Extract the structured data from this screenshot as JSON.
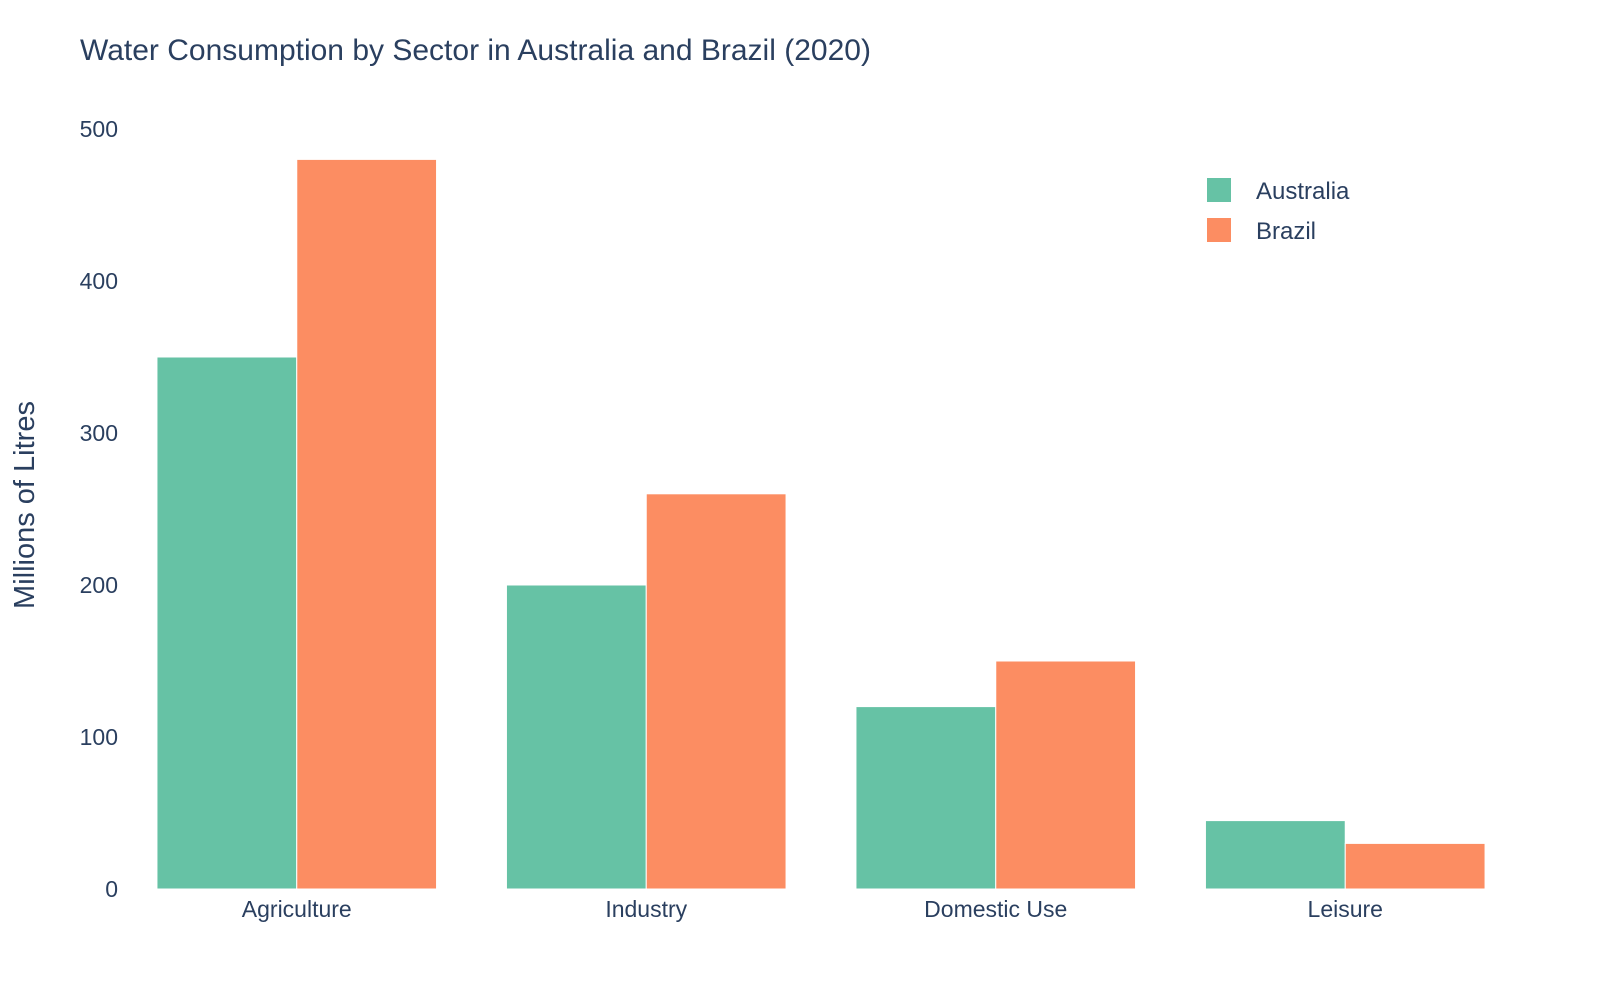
{
  "chart_data": {
    "type": "bar",
    "title": "Water Consumption by Sector in Australia and Brazil (2020)",
    "xlabel": "",
    "ylabel": "Millions of Litres",
    "categories": [
      "Agriculture",
      "Industry",
      "Domestic Use",
      "Leisure"
    ],
    "series": [
      {
        "name": "Australia",
        "values": [
          350,
          200,
          120,
          45
        ],
        "color": "#66c2a5"
      },
      {
        "name": "Brazil",
        "values": [
          480,
          260,
          150,
          30
        ],
        "color": "#fc8d62"
      }
    ],
    "ylim": [
      0,
      500
    ],
    "yticks": [
      "0",
      "100",
      "200",
      "300",
      "400",
      "500"
    ],
    "grid": false,
    "legend_position": "top-right"
  }
}
